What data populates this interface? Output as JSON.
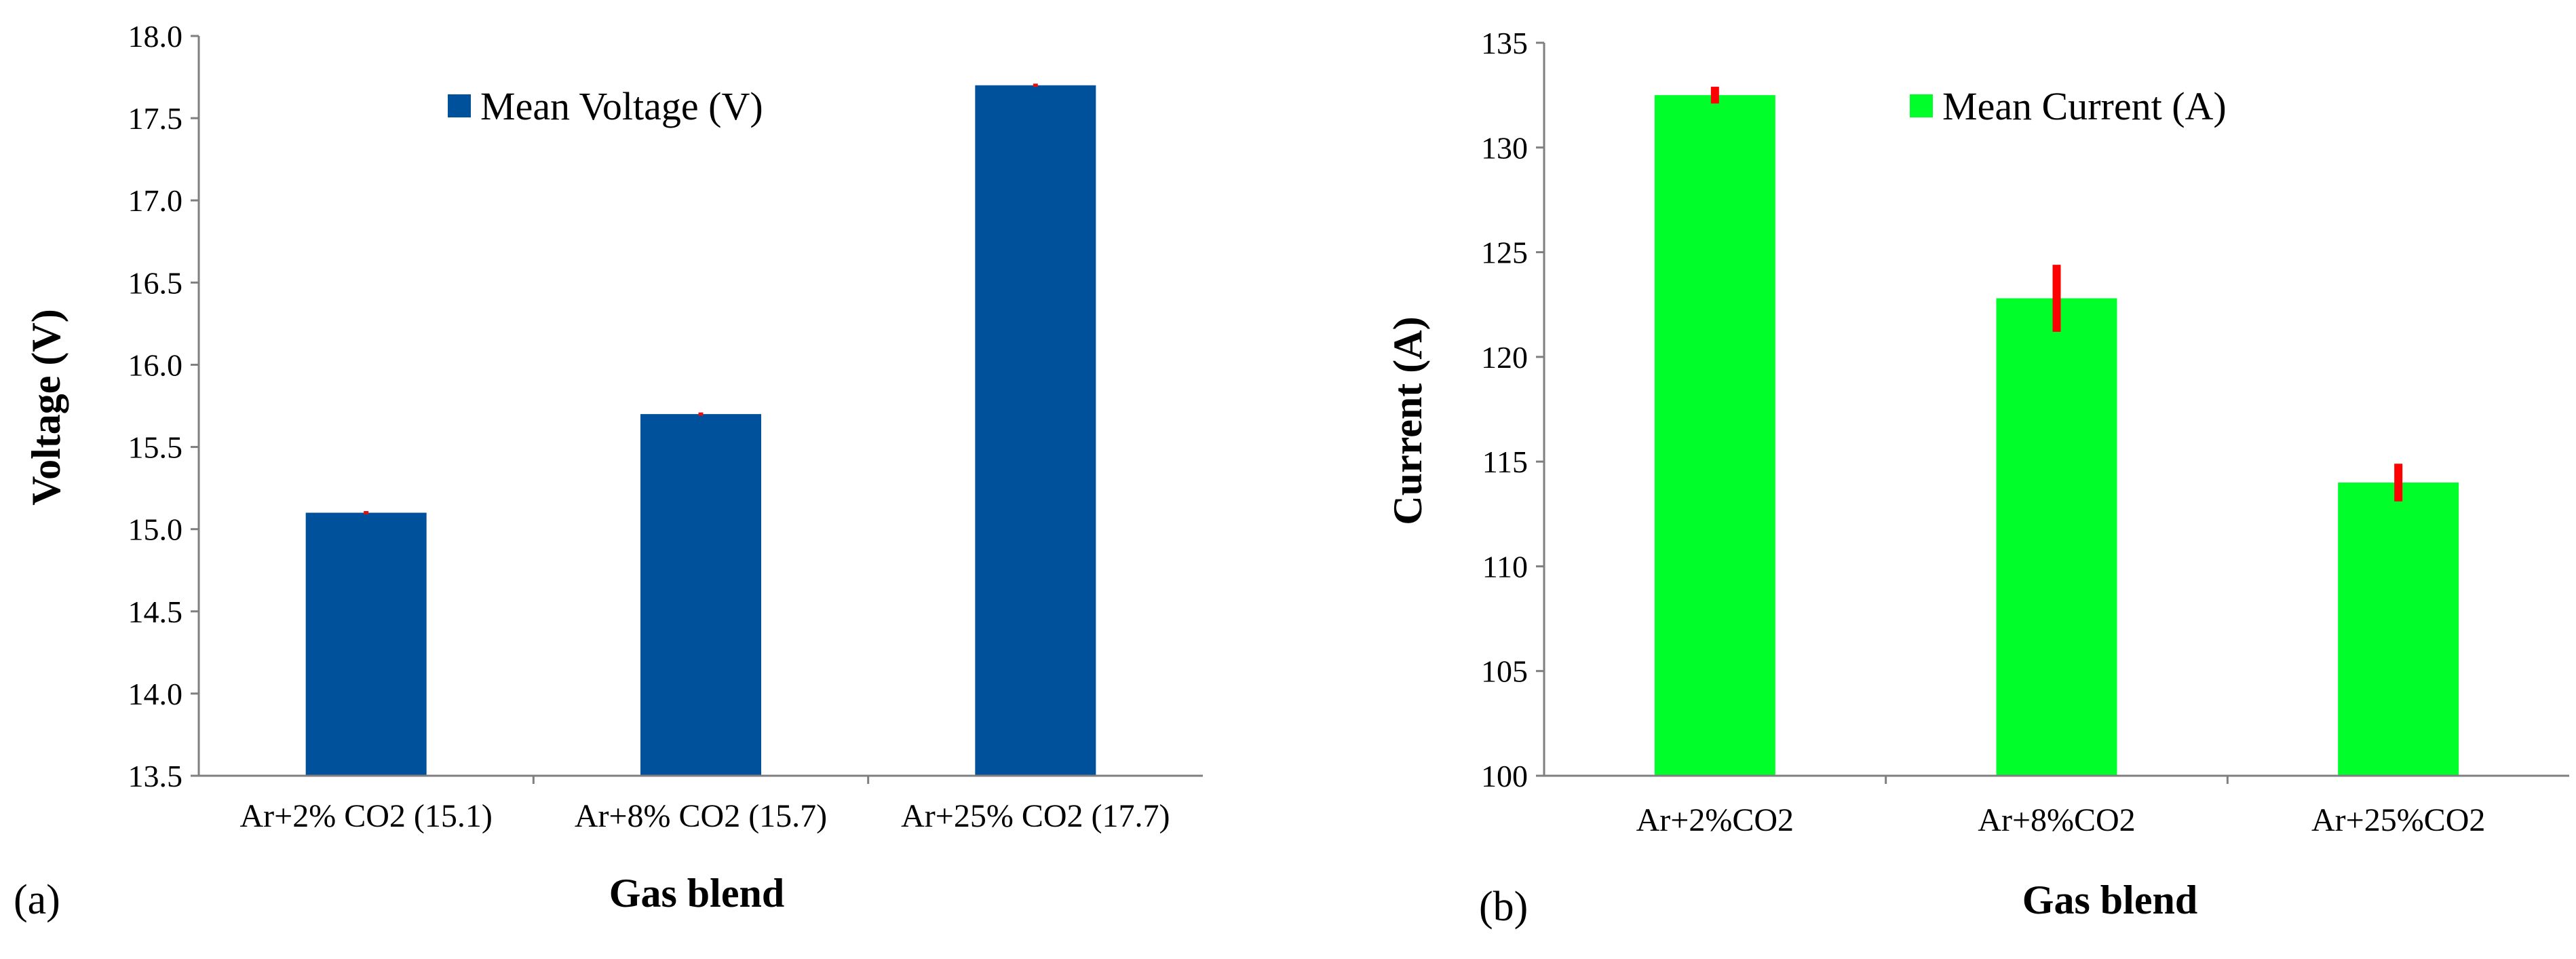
{
  "chart_data": [
    {
      "type": "bar",
      "panel_label": "(a)",
      "title": "",
      "xlabel": "Gas blend",
      "ylabel": "Voltage (V)",
      "ylim": [
        13.5,
        18.0
      ],
      "yticks": [
        "13.5",
        "14.0",
        "14.5",
        "15.0",
        "15.5",
        "16.0",
        "16.5",
        "17.0",
        "17.5",
        "18.0"
      ],
      "categories": [
        "Ar+2% CO2 (15.1)",
        "Ar+8% CO2 (15.7)",
        "Ar+25% CO2 (17.7)"
      ],
      "series": [
        {
          "name": "Mean Voltage (V)",
          "values": [
            15.1,
            15.7,
            17.7
          ],
          "error": [
            0.01,
            0.01,
            0.01
          ],
          "color": "#00519b",
          "error_color": "#e01010"
        }
      ],
      "legend_position": "top-center",
      "grid": false
    },
    {
      "type": "bar",
      "panel_label": "(b)",
      "title": "",
      "xlabel": "Gas blend",
      "ylabel": "Current (A)",
      "ylim": [
        100,
        135
      ],
      "yticks": [
        "100",
        "105",
        "110",
        "115",
        "120",
        "125",
        "130",
        "135"
      ],
      "categories": [
        "Ar+2%CO2",
        "Ar+8%CO2",
        "Ar+25%CO2"
      ],
      "series": [
        {
          "name": "Mean Current (A)",
          "values": [
            132.5,
            122.8,
            114.0
          ],
          "error": [
            0.4,
            1.6,
            0.9
          ],
          "color": "#00ff2a",
          "error_color": "#ff0000"
        }
      ],
      "legend_position": "top-center",
      "grid": false
    }
  ]
}
